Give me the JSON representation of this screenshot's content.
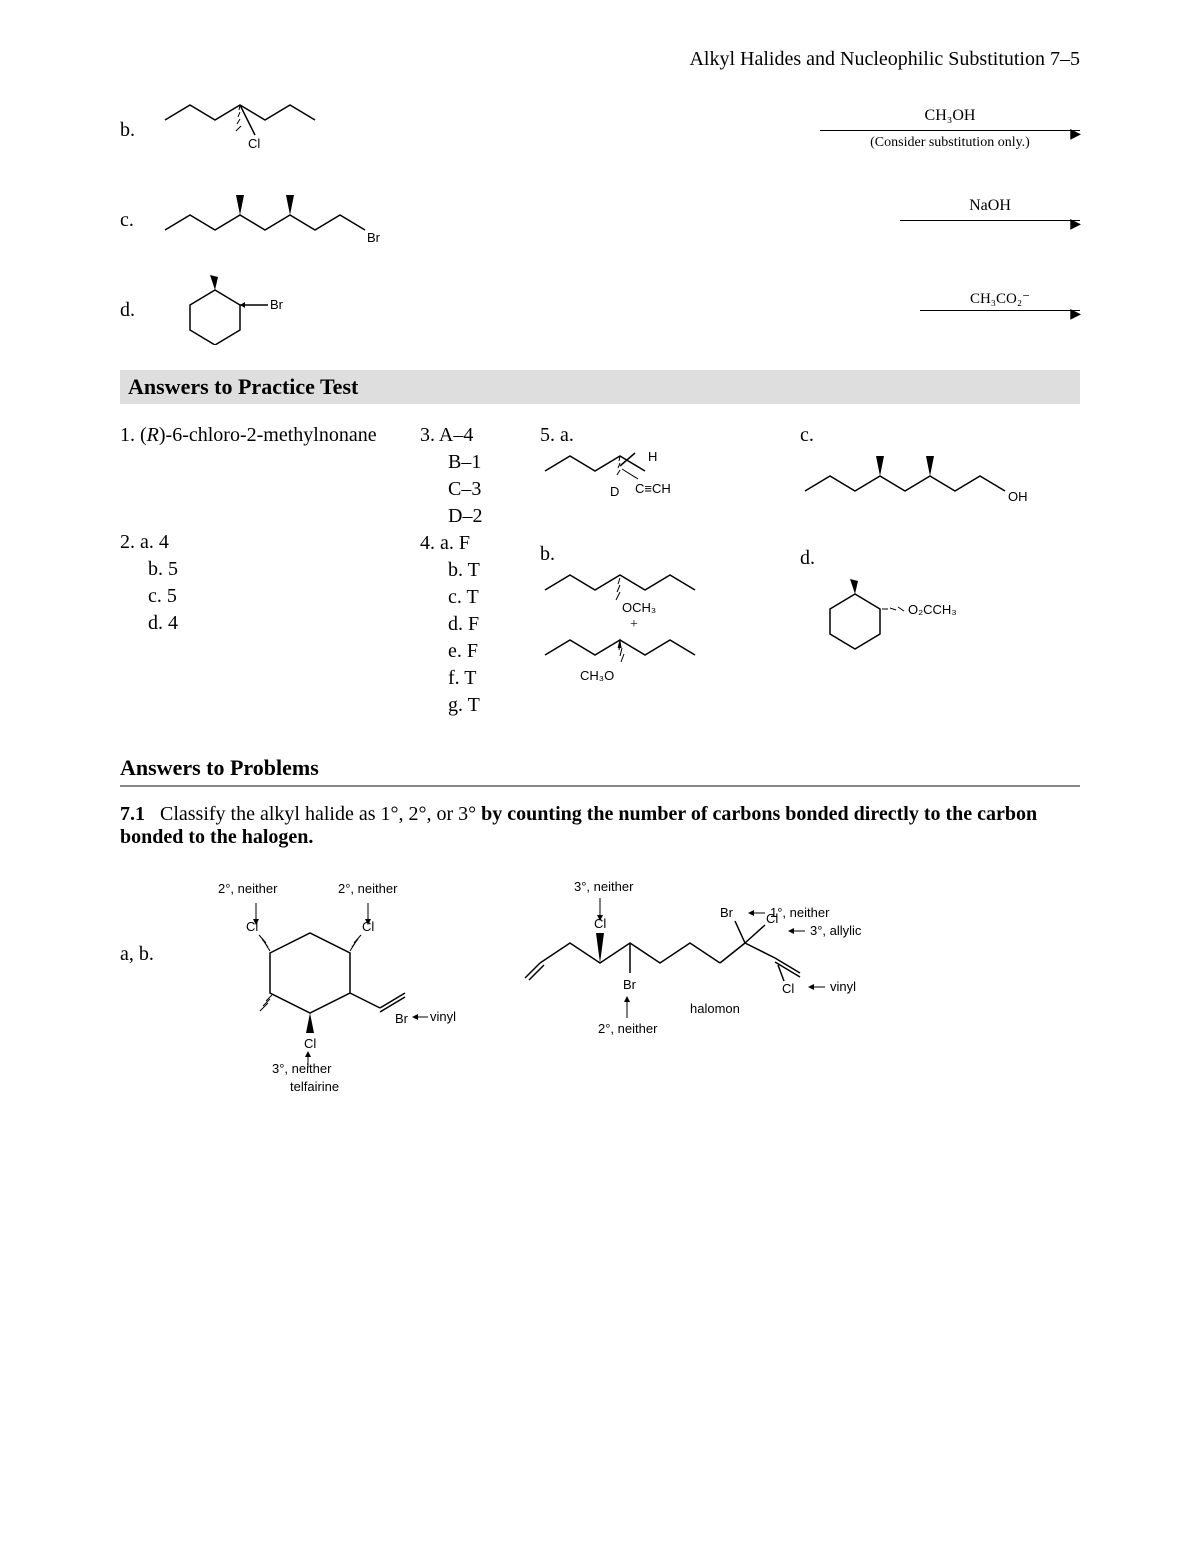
{
  "header": "Alkyl Halides and Nucleophilic Substitution 7–5",
  "q": {
    "b": {
      "label": "b.",
      "reagentTop": "CH₃OH",
      "reagentBot": "(Consider substitution only.)",
      "lg": "Cl"
    },
    "c": {
      "label": "c.",
      "reagentTop": "NaOH",
      "lg": "Br"
    },
    "d": {
      "label": "d.",
      "reagentTop": "CH₃CO₂⁻",
      "lg": "Br"
    }
  },
  "sectionA": "Answers to Practice Test",
  "ans": {
    "q1": "1. (R)-6-chloro-2-methylnonane",
    "q2": {
      "h": "2. a. 4",
      "b": "b. 5",
      "c": "c. 5",
      "d": "d. 4"
    },
    "q3": {
      "a": "3. A–4",
      "b": "B–1",
      "c": "C–3",
      "d": "D–2"
    },
    "q4": {
      "a": "4. a. F",
      "b": "b. T",
      "c": "c. T",
      "d": "d. F",
      "e": "e. F",
      "f": "f. T",
      "g": "g. T"
    },
    "q5": {
      "a": "5. a.",
      "b": "b.",
      "c": "c.",
      "d": "d.",
      "a_labels": {
        "H": "H",
        "D": "D",
        "alk": "C≡CH"
      },
      "b_label": "OCH₃",
      "b_label2": "CH₃O",
      "c_label": "OH",
      "d_label": "O₂CCH₃"
    }
  },
  "sectionB": "Answers to Problems",
  "p71": {
    "num": "7.1",
    "text1": "Classify the alkyl halide as 1°, 2°, or 3° ",
    "bold": "by counting the number of carbons bonded directly to the carbon bonded to the halogen.",
    "left": {
      "row": "a, b.",
      "l1": "2°, neither",
      "l2": "2°, neither",
      "l3": "3°, neither",
      "l4": "vinyl",
      "name": "telfairine",
      "Cl": "Cl",
      "Br": "Br"
    },
    "right": {
      "l1": "3°, neither",
      "l2": "1°, neither",
      "l3": "3°, allylic",
      "l4": "vinyl",
      "l5": "2°, neither",
      "name": "halomon",
      "Cl": "Cl",
      "Br": "Br"
    }
  }
}
